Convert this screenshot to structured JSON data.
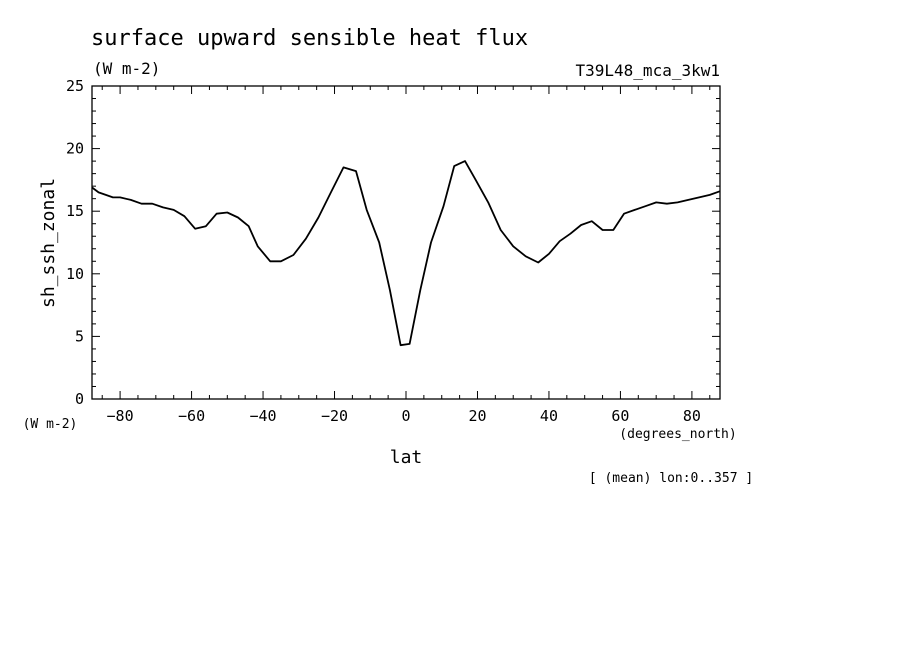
{
  "chart_data": {
    "type": "line",
    "title": "surface upward sensible heat flux",
    "units": "(W m-2)",
    "dataset": "T39L48_mca_3kw1",
    "xlabel": "lat",
    "ylabel": "sh_ssh_zonal",
    "y_unit_label": "(W m-2)",
    "x_unit_label": "(degrees_north)",
    "note": "[ (mean) lon:0..357 ]",
    "xlim": [
      -87.86,
      87.86
    ],
    "ylim": [
      0,
      25
    ],
    "x_ticks": [
      -80,
      -60,
      -40,
      -20,
      0,
      20,
      40,
      60,
      80
    ],
    "y_ticks": [
      0,
      5,
      10,
      15,
      20,
      25
    ],
    "grid": false,
    "series": [
      {
        "x": [
          -87.9,
          -86.0,
          -84.0,
          -82.0,
          -80.0,
          -77.0,
          -74.0,
          -71.0,
          -68.0,
          -65.0,
          -62.0,
          -59.0,
          -56.0,
          -53.0,
          -50.0,
          -47.0,
          -44.0,
          -41.5,
          -38.0,
          -35.0,
          -31.5,
          -28.0,
          -24.5,
          -21.0,
          -17.5,
          -14.0,
          -11.0,
          -7.5,
          -4.5,
          -1.5,
          1.0,
          4.0,
          7.0,
          10.5,
          13.5,
          16.5,
          19.5,
          23.0,
          26.5,
          30.0,
          33.5,
          37.0,
          40.0,
          43.0,
          46.0,
          49.0,
          52.0,
          55.0,
          58.0,
          61.0,
          64.0,
          67.0,
          70.0,
          73.0,
          76.0,
          79.0,
          82.0,
          85.0,
          87.9
        ],
        "y": [
          16.9,
          16.5,
          16.3,
          16.1,
          16.1,
          15.9,
          15.6,
          15.6,
          15.3,
          15.1,
          14.6,
          13.6,
          13.8,
          14.8,
          14.9,
          14.5,
          13.8,
          12.2,
          11.0,
          11.0,
          11.5,
          12.8,
          14.5,
          16.5,
          18.5,
          18.2,
          15.1,
          12.5,
          8.7,
          4.3,
          4.4,
          8.7,
          12.5,
          15.4,
          18.6,
          19.0,
          17.5,
          15.7,
          13.5,
          12.2,
          11.4,
          10.9,
          11.6,
          12.6,
          13.2,
          13.9,
          14.2,
          13.5,
          13.5,
          14.8,
          15.1,
          15.4,
          15.7,
          15.6,
          15.7,
          15.9,
          16.1,
          16.3,
          16.6
        ]
      }
    ],
    "line_color": "#000000"
  }
}
